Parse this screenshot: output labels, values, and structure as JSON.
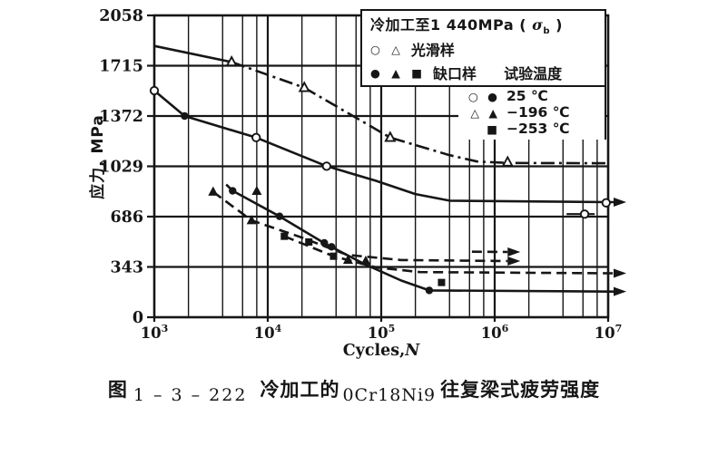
{
  "figure": {
    "caption": {
      "prefix": "图",
      "number": "1 – 3 – 222",
      "mid": "冷加工的",
      "material": "0Cr18Ni9",
      "suffix": "往复梁式疲劳强度"
    }
  },
  "chart_data": {
    "type": "line",
    "xlabel_roman": "Cycles,",
    "xlabel_italic": "N",
    "ylabel": "应力, MPa",
    "x_scale": "log",
    "xlim": [
      1000,
      10000000
    ],
    "ylim": [
      0,
      2058
    ],
    "x_tick_exponents": [
      "3",
      "4",
      "5",
      "6",
      "7"
    ],
    "x_tick_base": "10",
    "y_tick_step": 343,
    "y_tick_labels": [
      "0",
      "343",
      "686",
      "1029",
      "1372",
      "1715",
      "2058"
    ],
    "grid": "on",
    "line_color": "#161616",
    "legend_position": "top-right",
    "legend": {
      "title_pre": "冷加工至1 440MPa ( ",
      "sigma": "σ",
      "sigma_sub": "b",
      "title_post": " )",
      "smooth": {
        "symbols": "○ △",
        "label": "光滑样"
      },
      "notched": {
        "symbols": "● ▲ ■",
        "label": "缺口样"
      },
      "temp_header": "试验温度",
      "temps": [
        {
          "symbols": "○ ●",
          "label": "25 ℃"
        },
        {
          "symbols": "△ ▲",
          "label": "−196 ℃"
        },
        {
          "symbols": "■",
          "label": "−253 ℃"
        }
      ]
    },
    "series": [
      {
        "name": "smooth-196C-start",
        "style": "solid",
        "width": 2.6,
        "arrow": "none",
        "points": [
          [
            1000,
            1850
          ],
          [
            4800,
            1740
          ]
        ]
      },
      {
        "name": "smooth-196C-line",
        "style": "dashdot",
        "width": 2.6,
        "arrow": "none",
        "points": [
          [
            4800,
            1740
          ],
          [
            21000,
            1565
          ],
          [
            120000,
            1225
          ],
          [
            400000,
            1105
          ],
          [
            700000,
            1062
          ],
          [
            1300000,
            1052
          ],
          [
            10000000,
            1050
          ]
        ]
      },
      {
        "name": "smooth-25C-line",
        "style": "solid",
        "width": 2.6,
        "arrow": "edge",
        "points": [
          [
            1000,
            1545
          ],
          [
            1850,
            1372
          ],
          [
            7900,
            1225
          ],
          [
            33000,
            1030
          ],
          [
            90000,
            930
          ],
          [
            200000,
            840
          ],
          [
            400000,
            795
          ],
          [
            10000000,
            785
          ]
        ]
      },
      {
        "name": "notched-25C-line",
        "style": "solid",
        "width": 2.6,
        "arrow": "edge",
        "points": [
          [
            4300,
            905
          ],
          [
            4900,
            862
          ],
          [
            12700,
            688
          ],
          [
            31500,
            505
          ],
          [
            70000,
            365
          ],
          [
            150000,
            250
          ],
          [
            265000,
            183
          ],
          [
            10000000,
            175
          ]
        ]
      },
      {
        "name": "notched-196C-line",
        "style": "dashed",
        "width": 2.6,
        "arrow": "end",
        "points": [
          [
            3300,
            855
          ],
          [
            7200,
            660
          ],
          [
            20000,
            543
          ],
          [
            50000,
            425
          ],
          [
            150000,
            390
          ],
          [
            1300000,
            383
          ]
        ]
      },
      {
        "name": "notched-196C-upper-arrow",
        "style": "dashed",
        "width": 2.6,
        "arrow": "end",
        "points": [
          [
            630000,
            447
          ],
          [
            1300000,
            445
          ]
        ]
      },
      {
        "name": "notched-253C-line",
        "style": "dashed",
        "width": 2.6,
        "arrow": "edge",
        "points": [
          [
            14000,
            552
          ],
          [
            38000,
            416
          ],
          [
            90000,
            340
          ],
          [
            220000,
            308
          ],
          [
            10000000,
            300
          ]
        ]
      },
      {
        "name": "runout-segment",
        "style": "solid",
        "width": 2.2,
        "arrow": "none",
        "points": [
          [
            4300000,
            703
          ],
          [
            7600000,
            703
          ]
        ]
      }
    ],
    "markers": [
      {
        "symbol": "triangle-open",
        "points": [
          [
            4800,
            1740
          ],
          [
            21000,
            1565
          ],
          [
            120000,
            1225
          ],
          [
            1300000,
            1057
          ]
        ]
      },
      {
        "symbol": "circle-open",
        "points": [
          [
            1000,
            1545
          ],
          [
            7900,
            1225
          ],
          [
            33000,
            1030
          ],
          [
            6200000,
            703
          ],
          [
            9600000,
            780
          ]
        ]
      },
      {
        "symbol": "circle-filled",
        "points": [
          [
            1850,
            1372
          ],
          [
            4900,
            862
          ],
          [
            12700,
            688
          ],
          [
            31500,
            507
          ],
          [
            36500,
            480
          ],
          [
            265000,
            183
          ]
        ]
      },
      {
        "symbol": "triangle-filled",
        "points": [
          [
            3300,
            855
          ],
          [
            8000,
            860
          ],
          [
            7200,
            660
          ],
          [
            51000,
            390
          ],
          [
            73000,
            383
          ]
        ]
      },
      {
        "symbol": "square-filled",
        "points": [
          [
            14000,
            552
          ],
          [
            23000,
            513
          ],
          [
            38000,
            416
          ],
          [
            340000,
            237
          ]
        ]
      }
    ]
  }
}
